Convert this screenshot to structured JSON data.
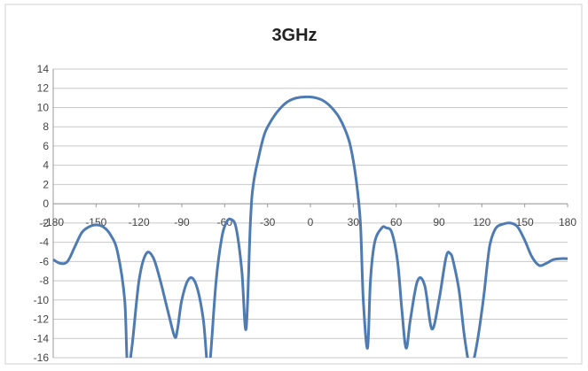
{
  "chart_data": {
    "type": "line",
    "title": "3GHz",
    "xlabel": "",
    "ylabel": "",
    "xlim": [
      -180,
      180
    ],
    "ylim": [
      -16,
      14
    ],
    "x_ticks": [
      -180,
      -150,
      -120,
      -90,
      -60,
      -30,
      0,
      30,
      60,
      90,
      120,
      150,
      180
    ],
    "y_ticks": [
      14,
      12,
      10,
      8,
      6,
      4,
      2,
      0,
      -2,
      -4,
      -6,
      -8,
      -10,
      -12,
      -14,
      -16
    ],
    "grid": true,
    "legend": "none",
    "color": "#4f7bb3",
    "series": [
      {
        "name": "",
        "x": [
          -180,
          -175,
          -170,
          -165,
          -160,
          -155,
          -150,
          -145,
          -140,
          -135,
          -130,
          -128,
          -125,
          -120,
          -115,
          -110,
          -105,
          -100,
          -95,
          -93,
          -90,
          -85,
          -80,
          -75,
          -72,
          -70,
          -66,
          -62,
          -59,
          -56,
          -52,
          -48,
          -45,
          -42,
          -40,
          -36,
          -32,
          -28,
          -24,
          -20,
          -16,
          -12,
          -8,
          -4,
          0,
          4,
          8,
          12,
          16,
          20,
          24,
          28,
          32,
          35,
          37,
          40,
          42,
          45,
          50,
          53,
          57,
          61,
          64,
          67,
          70,
          75,
          80,
          85,
          90,
          95,
          98,
          100,
          104,
          108,
          112,
          116,
          121,
          124,
          126,
          130,
          135,
          140,
          145,
          150,
          155,
          160,
          165,
          170,
          175,
          180
        ],
        "y": [
          -5.8,
          -6.2,
          -6,
          -4.5,
          -3,
          -2.4,
          -2.2,
          -2.4,
          -3.2,
          -5,
          -10,
          -17,
          -15,
          -8,
          -5.2,
          -5.6,
          -8,
          -11,
          -13.8,
          -13,
          -10,
          -7.8,
          -8.4,
          -12,
          -17,
          -16,
          -8,
          -3.5,
          -2,
          -1.6,
          -2.5,
          -7,
          -13,
          -2,
          2,
          5,
          7.3,
          8.5,
          9.4,
          10.1,
          10.6,
          10.9,
          11.05,
          11.1,
          11.1,
          11,
          10.8,
          10.4,
          9.8,
          9,
          7.8,
          6,
          2.5,
          -2,
          -10,
          -15,
          -8,
          -4,
          -2.5,
          -2.5,
          -3,
          -6,
          -11,
          -15,
          -12,
          -8,
          -8.5,
          -13,
          -10,
          -5.5,
          -5.2,
          -6,
          -9,
          -14,
          -17,
          -15,
          -10,
          -6,
          -4,
          -2.5,
          -2.1,
          -2,
          -2.4,
          -3.8,
          -5.5,
          -6.4,
          -6.2,
          -5.8,
          -5.7,
          -5.7
        ]
      }
    ]
  }
}
